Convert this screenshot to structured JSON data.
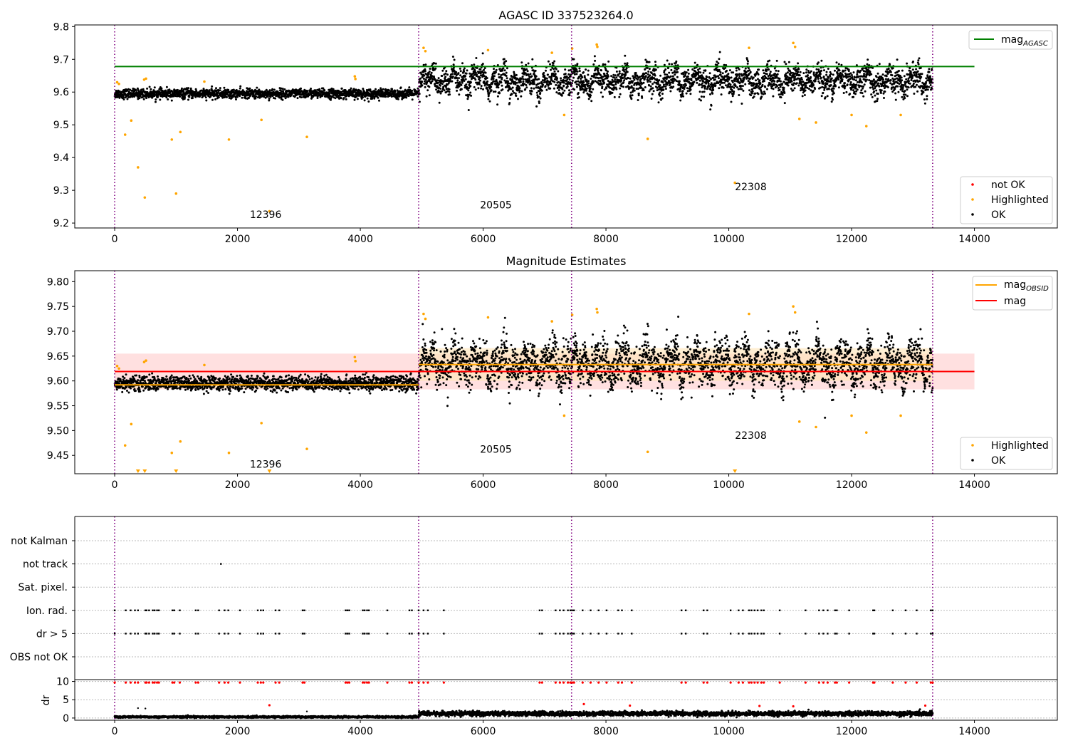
{
  "figure": {
    "colors": {
      "ok": "#000000",
      "highlighted": "#ffa500",
      "not_ok": "#ff0000",
      "mag_agasc_line": "#008000",
      "mag_line": "#ff0000",
      "mag_obsid_line": "#ffa500",
      "obsid_boundary": "#800080",
      "mag_band": "#ffcccc",
      "obsid_band": "#ffe4b5",
      "grid": "#bbbbbb"
    }
  },
  "chart_data": [
    {
      "type": "scatter",
      "title": "AGASC ID 337523264.0",
      "xlim": [
        -650,
        15350
      ],
      "ylim": [
        9.185,
        9.805
      ],
      "x_ticks": [
        0,
        2000,
        4000,
        6000,
        8000,
        10000,
        12000,
        14000
      ],
      "x_tick_labels": [
        "0",
        "2000",
        "4000",
        "6000",
        "8000",
        "10000",
        "12000",
        "14000"
      ],
      "y_ticks": [
        9.2,
        9.3,
        9.4,
        9.5,
        9.6,
        9.7,
        9.8
      ],
      "y_tick_labels": [
        "9.2",
        "9.3",
        "9.4",
        "9.5",
        "9.6",
        "9.7",
        "9.8"
      ],
      "obsid_boundaries": [
        0,
        4950,
        7440,
        13320
      ],
      "obsid_labels": [
        {
          "text": "12396",
          "x": 2200,
          "y": 9.215
        },
        {
          "text": "20505",
          "x": 5950,
          "y": 9.245
        },
        {
          "text": "22308",
          "x": 10100,
          "y": 9.3
        }
      ],
      "mag_agasc": {
        "value": 9.678,
        "x_range": [
          0,
          14000
        ]
      },
      "ok_series": {
        "name": "OK",
        "segments": [
          {
            "x": [
              0,
              4950
            ],
            "mean": 9.595,
            "spread": 0.012
          },
          {
            "x": [
              4950,
              13320
            ],
            "mean": 9.635,
            "spread": 0.035
          }
        ]
      },
      "highlighted": {
        "name": "Highlighted",
        "x": [
          170,
          270,
          380,
          490,
          930,
          1000,
          1070,
          1860,
          2390,
          2520,
          3130,
          7320,
          8680,
          10100,
          11150,
          11420,
          12000,
          12240,
          12800,
          40,
          70,
          480,
          510,
          1460,
          3910,
          3920,
          5030,
          5060,
          6080,
          7120,
          7450,
          7850,
          7860,
          10330,
          11050,
          11080
        ],
        "y": [
          9.47,
          9.513,
          9.37,
          9.278,
          9.455,
          9.29,
          9.478,
          9.455,
          9.515,
          9.236,
          9.463,
          9.53,
          9.457,
          9.323,
          9.518,
          9.507,
          9.53,
          9.496,
          9.53,
          9.63,
          9.625,
          9.638,
          9.641,
          9.632,
          9.648,
          9.64,
          9.735,
          9.725,
          9.728,
          9.72,
          9.733,
          9.745,
          9.738,
          9.735,
          9.75,
          9.738
        ]
      },
      "not_ok": {
        "name": "not OK",
        "x": [],
        "y": []
      },
      "legends": [
        {
          "position": "upper-right",
          "entries": [
            "mag_AGASC"
          ]
        },
        {
          "position": "lower-right",
          "entries": [
            "not OK",
            "Highlighted",
            "OK"
          ]
        }
      ]
    },
    {
      "type": "scatter",
      "title": "Magnitude Estimates",
      "xlim": [
        -650,
        15350
      ],
      "ylim": [
        9.413,
        9.822
      ],
      "x_ticks": [
        0,
        2000,
        4000,
        6000,
        8000,
        10000,
        12000,
        14000
      ],
      "x_tick_labels": [
        "0",
        "2000",
        "4000",
        "6000",
        "8000",
        "10000",
        "12000",
        "14000"
      ],
      "y_ticks": [
        9.45,
        9.5,
        9.55,
        9.6,
        9.65,
        9.7,
        9.75,
        9.8
      ],
      "y_tick_labels": [
        "9.45",
        "9.50",
        "9.55",
        "9.60",
        "9.65",
        "9.70",
        "9.75",
        "9.80"
      ],
      "obsid_boundaries": [
        0,
        4950,
        7440,
        13320
      ],
      "obsid_labels": [
        {
          "text": "12396",
          "x": 2200,
          "y": 9.425
        },
        {
          "text": "20505",
          "x": 5950,
          "y": 9.455
        },
        {
          "text": "22308",
          "x": 10100,
          "y": 9.483
        }
      ],
      "mag": {
        "value": 9.619,
        "band": [
          9.583,
          9.655
        ],
        "x_range": [
          0,
          14000
        ]
      },
      "mag_obsid": [
        {
          "x": [
            0,
            4950
          ],
          "value": 9.592,
          "band": [
            9.585,
            9.6
          ]
        },
        {
          "x": [
            4950,
            13320
          ],
          "value": 9.633,
          "band": [
            9.6,
            9.666
          ]
        }
      ],
      "ok_series": {
        "name": "OK",
        "segments": [
          {
            "x": [
              0,
              4950
            ],
            "mean": 9.595,
            "spread": 0.012
          },
          {
            "x": [
              4950,
              13320
            ],
            "mean": 9.635,
            "spread": 0.035
          }
        ]
      },
      "highlighted": {
        "name": "Highlighted",
        "x": [
          170,
          270,
          930,
          1070,
          1860,
          2390,
          3130,
          7320,
          8680,
          11150,
          11420,
          12000,
          12240,
          12800,
          40,
          70,
          480,
          510,
          1460,
          3910,
          3920,
          5030,
          5060,
          6080,
          7120,
          7450,
          7850,
          7860,
          10330,
          11050,
          11080
        ],
        "y": [
          9.47,
          9.513,
          9.455,
          9.478,
          9.455,
          9.515,
          9.463,
          9.53,
          9.457,
          9.518,
          9.507,
          9.53,
          9.496,
          9.53,
          9.63,
          9.625,
          9.638,
          9.641,
          9.632,
          9.648,
          9.64,
          9.735,
          9.725,
          9.728,
          9.72,
          9.733,
          9.745,
          9.738,
          9.735,
          9.75,
          9.738
        ]
      },
      "off_scale_markers": {
        "x": [
          380,
          490,
          1000,
          2520,
          10100
        ],
        "y": 9.413
      },
      "legends": [
        {
          "position": "upper-right",
          "entries": [
            "mag_OBSID",
            "mag"
          ]
        },
        {
          "position": "lower-right",
          "entries": [
            "Highlighted",
            "OK"
          ]
        }
      ]
    },
    {
      "type": "scatter",
      "title": "",
      "xlim": [
        -650,
        15350
      ],
      "x_ticks": [
        0,
        2000,
        4000,
        6000,
        8000,
        10000,
        12000,
        14000
      ],
      "x_tick_labels": [
        "0",
        "2000",
        "4000",
        "6000",
        "8000",
        "10000",
        "12000",
        "14000"
      ],
      "obsid_boundaries": [
        0,
        4950,
        7440,
        13320
      ],
      "flag_rows": [
        "not Kalman",
        "not track",
        "Sat. pixel.",
        "Ion. rad.",
        "dr > 5",
        "OBS not OK"
      ],
      "flags": {
        "not track": [
          1730
        ],
        "Ion. rad.": [
          0,
          180,
          260,
          330,
          380,
          500,
          520,
          560,
          620,
          650,
          690,
          720,
          940,
          970,
          1060,
          1320,
          1360,
          1700,
          1790,
          1850,
          2040,
          2330,
          2380,
          2420,
          2620,
          2680,
          3060,
          3090,
          3760,
          3790,
          3820,
          4040,
          4070,
          4110,
          4140,
          4440,
          4800,
          4840,
          4950,
          5030,
          5100,
          5360,
          6920,
          6960,
          7180,
          7250,
          7310,
          7380,
          7420,
          7450,
          7480,
          7620,
          7750,
          7880,
          8010,
          8200,
          8260,
          8420,
          9230,
          9300,
          9590,
          9650,
          10030,
          10160,
          10230,
          10330,
          10370,
          10420,
          10470,
          10530,
          10570,
          10830,
          11250,
          11470,
          11540,
          11610,
          11730,
          11760,
          11960,
          12350,
          12370,
          12670,
          12880,
          13060,
          13290,
          13320
        ],
        "dr > 5": [
          0,
          180,
          260,
          330,
          380,
          500,
          520,
          560,
          620,
          650,
          690,
          720,
          940,
          970,
          1060,
          1320,
          1360,
          1700,
          1790,
          1850,
          2040,
          2330,
          2380,
          2420,
          2620,
          2680,
          3060,
          3090,
          3760,
          3790,
          3820,
          4040,
          4070,
          4110,
          4140,
          4440,
          4800,
          4840,
          4950,
          5030,
          5100,
          5360,
          6920,
          6960,
          7180,
          7250,
          7310,
          7380,
          7420,
          7450,
          7480,
          7620,
          7750,
          7880,
          8010,
          8200,
          8260,
          8420,
          9230,
          9300,
          9590,
          9650,
          10030,
          10160,
          10230,
          10330,
          10370,
          10420,
          10470,
          10530,
          10570,
          10830,
          11250,
          11470,
          11540,
          11610,
          11730,
          11760,
          11960,
          12350,
          12370,
          12670,
          12880,
          13060,
          13290,
          13320
        ]
      }
    },
    {
      "type": "scatter",
      "title": "",
      "ylabel": "dr",
      "xlim": [
        -650,
        15350
      ],
      "ylim": [
        -0.6,
        10.5
      ],
      "x_ticks": [
        0,
        2000,
        4000,
        6000,
        8000,
        10000,
        12000,
        14000
      ],
      "x_tick_labels": [
        "0",
        "2000",
        "4000",
        "6000",
        "8000",
        "10000",
        "12000",
        "14000"
      ],
      "y_ticks": [
        0,
        5,
        10
      ],
      "y_tick_labels": [
        "0",
        "5",
        "10"
      ],
      "obsid_boundaries": [
        0,
        4950,
        7440,
        13320
      ],
      "ok_series": {
        "name": "OK",
        "segments": [
          {
            "x": [
              0,
              4950
            ],
            "mean": 0.3,
            "spread": 0.2
          },
          {
            "x": [
              4950,
              13320
            ],
            "mean": 1.2,
            "spread": 0.5
          }
        ]
      },
      "clipped_at_10": {
        "x": [
          0,
          180,
          260,
          330,
          380,
          500,
          520,
          560,
          620,
          650,
          690,
          720,
          940,
          970,
          1060,
          1320,
          1360,
          1700,
          1790,
          1850,
          2040,
          2330,
          2380,
          2420,
          2620,
          2680,
          3060,
          3090,
          3760,
          3790,
          3820,
          4040,
          4070,
          4110,
          4140,
          4440,
          4800,
          4840,
          4950,
          5030,
          5100,
          5360,
          6920,
          6960,
          7180,
          7250,
          7310,
          7380,
          7420,
          7450,
          7480,
          7620,
          7750,
          7880,
          8010,
          8200,
          8260,
          8420,
          9230,
          9300,
          9590,
          9650,
          10030,
          10160,
          10230,
          10330,
          10370,
          10420,
          10470,
          10530,
          10570,
          10830,
          11250,
          11470,
          11540,
          11610,
          11730,
          11760,
          11960,
          12350,
          12370,
          12670,
          12880,
          13060,
          13290,
          13320
        ],
        "y": 9.7
      },
      "red_points": {
        "x": [
          2520,
          7640,
          8390,
          10500,
          11050,
          13200
        ],
        "y": [
          3.5,
          3.8,
          3.4,
          3.3,
          3.2,
          3.4
        ]
      },
      "black_outliers": {
        "x": [
          380,
          500,
          3130
        ],
        "y": [
          2.7,
          2.6,
          1.8
        ]
      }
    }
  ]
}
